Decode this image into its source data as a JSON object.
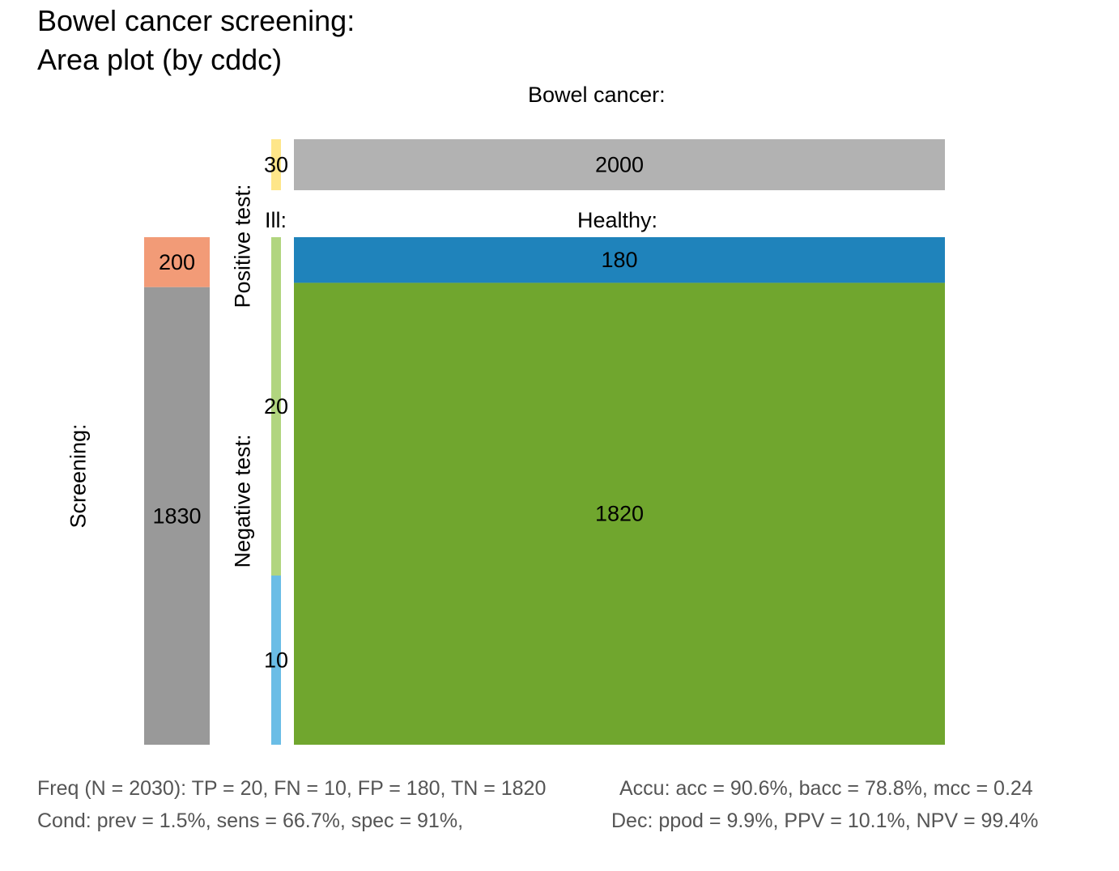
{
  "title_line1": "Bowel cancer screening:",
  "title_line2": "Area plot (by cddc)",
  "label_top": "Bowel cancer:",
  "label_ill": "Ill:",
  "label_healthy": "Healthy:",
  "label_screening": "Screening:",
  "label_positive": "Positive test:",
  "label_negative": "Negative test:",
  "footer": {
    "freq": "Freq (N = 2030):  TP = 20, FN = 10, FP = 180, TN = 1820",
    "accu": "Accu:  acc = 90.6%, bacc = 78.8%, mcc = 0.24",
    "cond": "Cond:  prev = 1.5%, sens = 66.7%, spec = 91%,",
    "dec": "Dec:  ppod = 9.9%, PPV = 10.1%, NPV = 99.4%"
  },
  "chart_data": {
    "type": "area",
    "N": 2030,
    "colors": {
      "TP": "#b1d57f",
      "FN": "#6abde6",
      "FP": "#1f83bb",
      "TN": "#70a62e",
      "pos": "#f29b77",
      "neg": "#999999",
      "cond_true": "#fee689",
      "cond_false": "#b2b2b2"
    },
    "condition_bar": [
      {
        "name": "cond_true",
        "value": 30
      },
      {
        "name": "cond_false",
        "value": 2000
      }
    ],
    "decision_bar": [
      {
        "name": "pos",
        "value": 200
      },
      {
        "name": "neg",
        "value": 1830
      }
    ],
    "ill_column": [
      {
        "name": "TP",
        "value": 20
      },
      {
        "name": "FN",
        "value": 10
      }
    ],
    "healthy_column": [
      {
        "name": "FP",
        "value": 180
      },
      {
        "name": "TN",
        "value": 1820
      }
    ]
  }
}
